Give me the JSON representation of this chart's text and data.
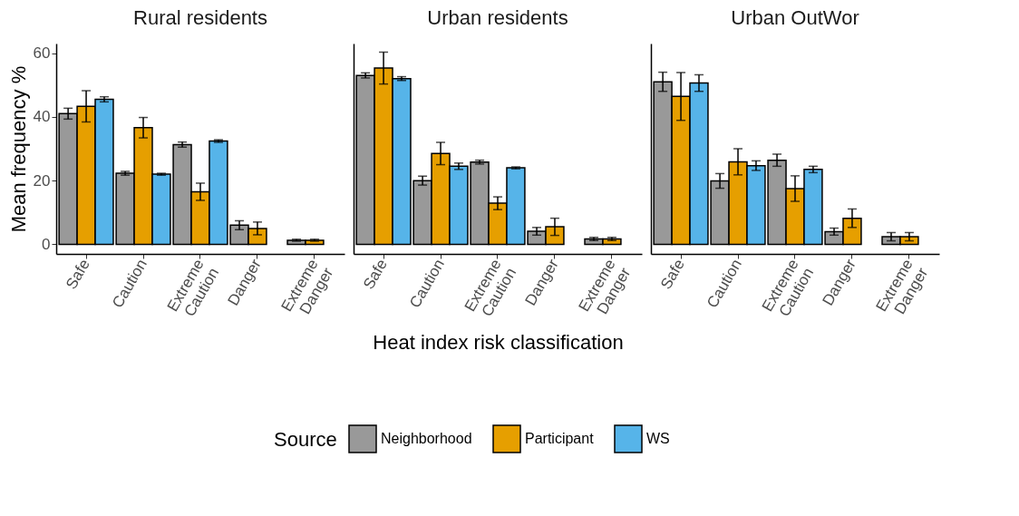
{
  "chart_data": [
    {
      "type": "bar",
      "title": "Rural residents",
      "ylabel": "Mean frequency %",
      "legend_title": "Source",
      "legend": "bottom",
      "categories": [
        "Safe",
        "Caution",
        "Extreme Caution",
        "Danger",
        "Extreme Danger"
      ],
      "ylim": [
        -3,
        63
      ],
      "yticks": [
        0,
        20,
        40,
        60
      ],
      "grid": false,
      "series": [
        {
          "name": "Neighborhood",
          "color": "#999999",
          "values": [
            41,
            22.3,
            31.3,
            6,
            1.3
          ],
          "errors": [
            1.7,
            0.6,
            0.8,
            1.4,
            0.3
          ]
        },
        {
          "name": "Participant",
          "color": "#e69f00",
          "values": [
            43.3,
            36.6,
            16.5,
            5,
            1.3
          ],
          "errors": [
            4.9,
            3.2,
            2.7,
            2,
            0.3
          ]
        },
        {
          "name": "WS",
          "color": "#56b4e9",
          "values": [
            45.5,
            22,
            32.4,
            null,
            null
          ],
          "errors": [
            0.8,
            0.3,
            0.4,
            null,
            null
          ]
        }
      ]
    },
    {
      "type": "bar",
      "title": "Urban residents",
      "xlabel": "Heat index risk classification",
      "legend": "bottom",
      "tick_labels": "x",
      "categories": [
        "Safe",
        "Caution",
        "Extreme Caution",
        "Danger",
        "Extreme Danger"
      ],
      "ylim": [
        -3,
        63
      ],
      "yticks": [
        0,
        20,
        40,
        60
      ],
      "grid": false,
      "series": [
        {
          "name": "Neighborhood",
          "color": "#999999",
          "values": [
            53,
            20,
            25.8,
            4.1,
            1.7
          ],
          "errors": [
            0.8,
            1.4,
            0.6,
            1.2,
            0.5
          ]
        },
        {
          "name": "Participant",
          "color": "#e69f00",
          "values": [
            55.3,
            28.5,
            12.9,
            5.5,
            1.7
          ],
          "errors": [
            5,
            3.5,
            2,
            2.7,
            0.5
          ]
        },
        {
          "name": "WS",
          "color": "#56b4e9",
          "values": [
            52,
            24.5,
            24,
            null,
            null
          ],
          "errors": [
            0.6,
            1,
            0.3,
            null,
            null
          ]
        }
      ]
    },
    {
      "type": "bar",
      "title": "Urban OutWor",
      "legend": "bottom",
      "tick_labels": "x",
      "categories": [
        "Safe",
        "Caution",
        "Extreme Caution",
        "Danger",
        "Extreme Danger"
      ],
      "ylim": [
        -3,
        63
      ],
      "yticks": [
        0,
        20,
        40,
        60
      ],
      "grid": false,
      "series": [
        {
          "name": "Neighborhood",
          "color": "#999999",
          "values": [
            51,
            19.9,
            26.4,
            4,
            2.4
          ],
          "errors": [
            3,
            2.3,
            1.9,
            1.1,
            1.3
          ]
        },
        {
          "name": "Participant",
          "color": "#e69f00",
          "values": [
            46.4,
            25.9,
            17.5,
            8.2,
            2.4
          ],
          "errors": [
            7.5,
            4.1,
            4,
            2.9,
            1.3
          ]
        },
        {
          "name": "WS",
          "color": "#56b4e9",
          "values": [
            50.6,
            24.7,
            23.5,
            null,
            null
          ],
          "errors": [
            2.6,
            1.5,
            1,
            null,
            null
          ]
        }
      ]
    }
  ]
}
